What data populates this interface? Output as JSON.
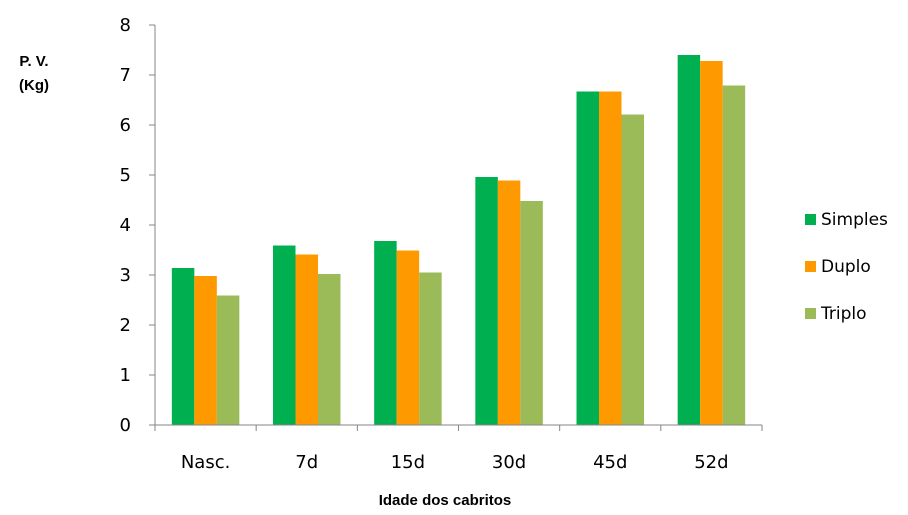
{
  "chart_data": {
    "type": "bar",
    "title": "",
    "ylabel_lines": [
      "P. V.",
      "(Kg)"
    ],
    "xlabel": "Idade dos cabritos",
    "categories": [
      "Nasc.",
      "7d",
      "15d",
      "30d",
      "45d",
      "52d"
    ],
    "ylim": [
      0,
      8
    ],
    "yticks": [
      "0",
      "1",
      "2",
      "3",
      "4",
      "5",
      "6",
      "7",
      "8"
    ],
    "grid": false,
    "legend_position": "right",
    "series": [
      {
        "name": "Simples",
        "color": "#00B050",
        "values": [
          3.14,
          3.59,
          3.68,
          4.96,
          6.67,
          7.4
        ]
      },
      {
        "name": "Duplo",
        "color": "#FF9900",
        "values": [
          2.98,
          3.41,
          3.49,
          4.89,
          6.67,
          7.28
        ]
      },
      {
        "name": "Triplo",
        "color": "#9BBB59",
        "values": [
          2.59,
          3.02,
          3.05,
          4.48,
          6.21,
          6.79
        ]
      }
    ]
  }
}
